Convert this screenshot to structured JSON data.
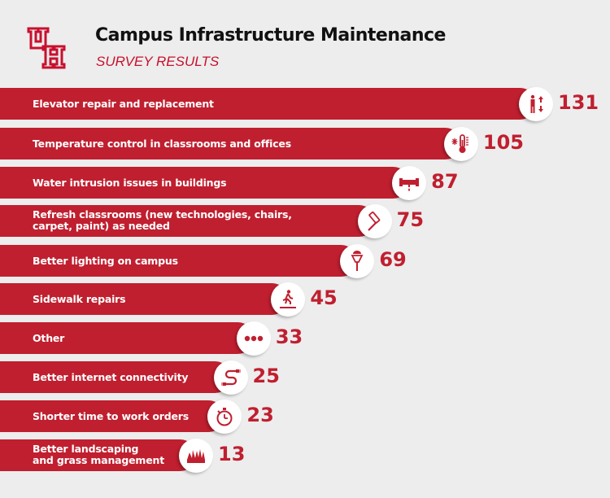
{
  "header": {
    "title": "Campus Infrastructure Maintenance",
    "subtitle": "SURVEY RESULTS",
    "logo_text": "UH"
  },
  "colors": {
    "accent": "#c01f2f",
    "background": "#ededed",
    "title": "#111111"
  },
  "chart_data": {
    "type": "bar",
    "orientation": "horizontal",
    "title": "Campus Infrastructure Maintenance",
    "subtitle": "SURVEY RESULTS",
    "categories": [
      "Elevator repair and replacement",
      "Temperature control in classrooms and offices",
      "Water intrusion issues in buildings",
      "Refresh classrooms (new technologies, chairs, carpet, paint) as needed",
      "Better lighting on campus",
      "Sidewalk repairs",
      "Other",
      "Better internet connectivity",
      "Shorter time to work orders",
      "Better landscaping and grass management"
    ],
    "label_lines": [
      [
        "Elevator repair and replacement"
      ],
      [
        "Temperature control in classrooms and offices"
      ],
      [
        "Water intrusion issues in buildings"
      ],
      [
        "Refresh classrooms (new technologies, chairs,",
        "carpet, paint) as needed"
      ],
      [
        "Better lighting on campus"
      ],
      [
        "Sidewalk repairs"
      ],
      [
        "Other"
      ],
      [
        "Better internet connectivity"
      ],
      [
        "Shorter time to work orders"
      ],
      [
        "Better landscaping",
        "and grass management"
      ]
    ],
    "values": [
      131,
      105,
      87,
      75,
      69,
      45,
      33,
      25,
      23,
      13
    ],
    "value_labels": [
      "131",
      "105",
      "87",
      "75",
      "69",
      "45",
      "33",
      "25",
      "23",
      "13"
    ],
    "icons": [
      "elevator-icon",
      "thermometer-icon",
      "leaking-pipe-icon",
      "paint-roller-icon",
      "lamp-post-icon",
      "pedestrian-icon",
      "ellipsis-icon",
      "cable-icon",
      "stopwatch-icon",
      "grass-icon"
    ],
    "xlim": [
      0,
      131
    ],
    "grid": false,
    "legend": "none"
  }
}
